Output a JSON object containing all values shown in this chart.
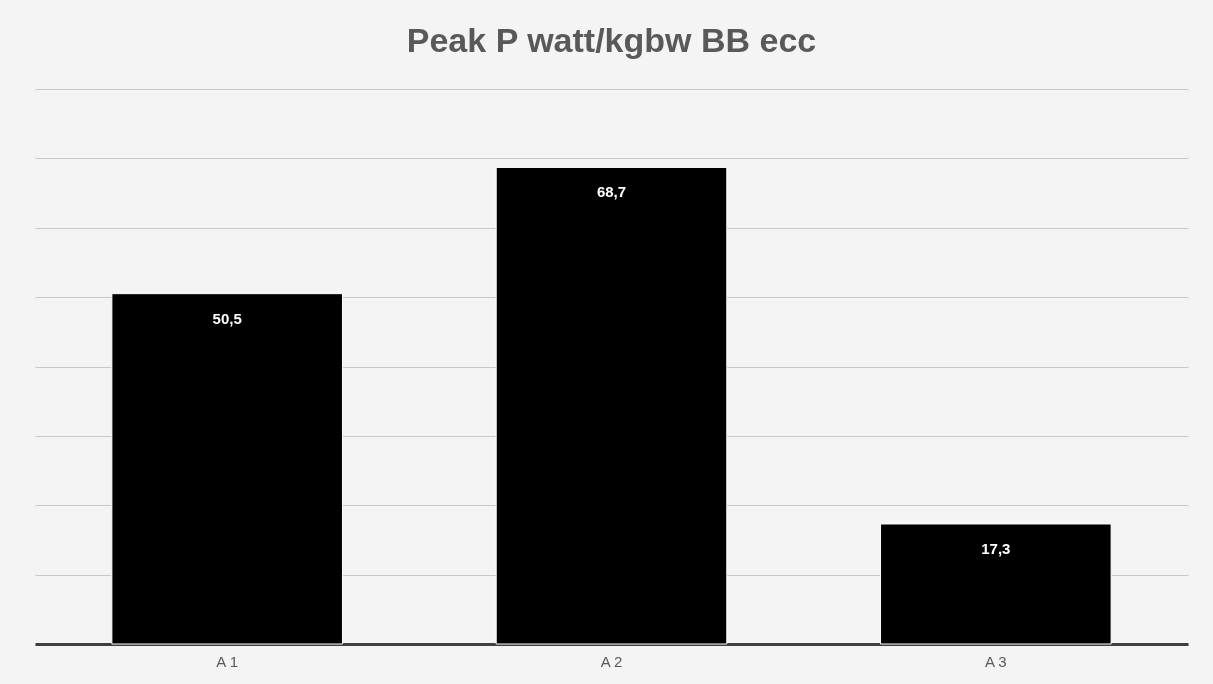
{
  "chart_data": {
    "type": "bar",
    "title": "Peak P watt/kgbw BB ecc",
    "categories": [
      "A 1",
      "A 2",
      "A 3"
    ],
    "values": [
      50.5,
      68.7,
      17.3
    ],
    "value_labels": [
      "50,5",
      "68,7",
      "17,3"
    ],
    "color": "#000000",
    "ylim": [
      0,
      80
    ],
    "yticks": [
      {
        "value": 0,
        "label": null
      },
      {
        "value": 10,
        "label": null
      },
      {
        "value": 20,
        "label": null
      },
      {
        "value": 30,
        "label": null
      },
      {
        "value": 40,
        "label": null
      },
      {
        "value": 50,
        "label": null
      },
      {
        "value": 60,
        "label": null
      },
      {
        "value": 70,
        "label": null
      },
      {
        "value": 80,
        "label": null
      }
    ],
    "grid": "y",
    "tick_labels": "x"
  }
}
